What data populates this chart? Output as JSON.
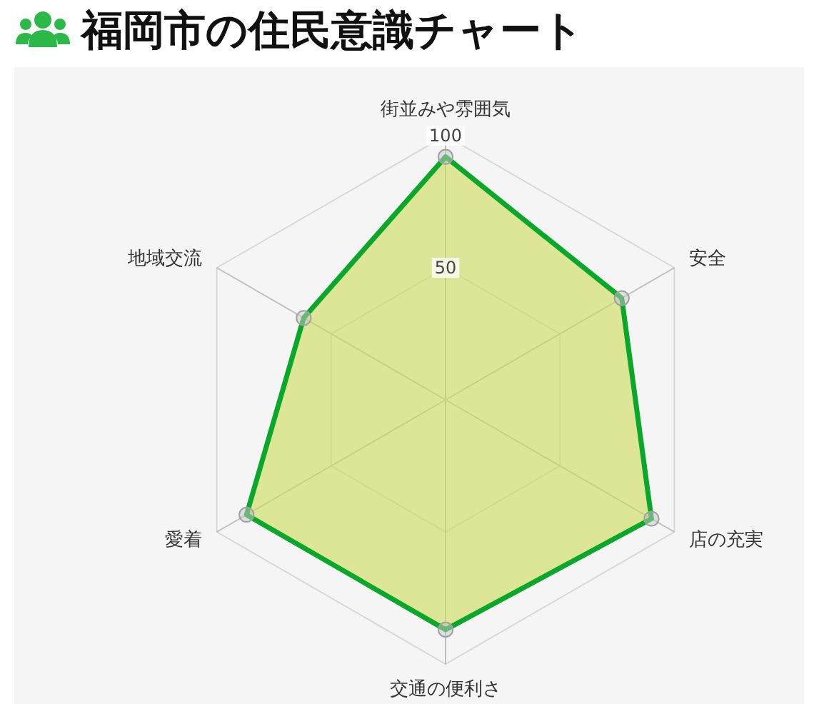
{
  "chart_data": {
    "type": "radar",
    "title": "福岡市の住民意識チャート",
    "categories": [
      "街並みや雰囲気",
      "安全",
      "店の充実",
      "交通の便利さ",
      "愛着",
      "地域交流"
    ],
    "series": [
      {
        "color": "#0aa82a",
        "values": [
          92,
          77,
          90,
          87,
          87,
          62
        ]
      }
    ],
    "ylim": [
      0,
      100
    ],
    "yticks": [
      50,
      100
    ],
    "grid": true,
    "marker": "circle"
  }
}
